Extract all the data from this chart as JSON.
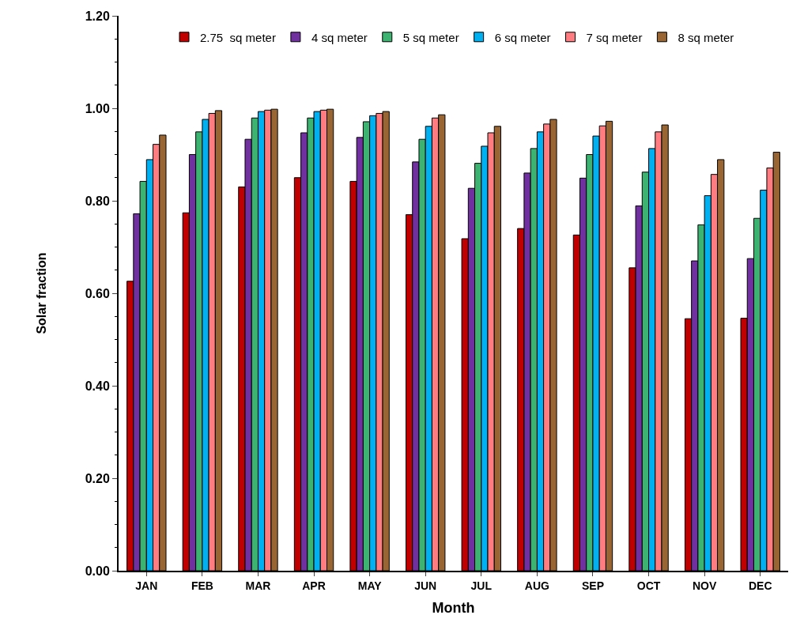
{
  "chart_data": {
    "type": "bar",
    "xlabel": "Month",
    "ylabel": "Solar fraction",
    "categories": [
      "JAN",
      "FEB",
      "MAR",
      "APR",
      "MAY",
      "JUN",
      "JUL",
      "AUG",
      "SEP",
      "OCT",
      "NOV",
      "DEC"
    ],
    "series": [
      {
        "name": "2.75  sq meter",
        "color": "#c00000",
        "values": [
          0.626,
          0.774,
          0.83,
          0.85,
          0.842,
          0.77,
          0.718,
          0.74,
          0.726,
          0.655,
          0.545,
          0.546
        ]
      },
      {
        "name": "4 sq meter",
        "color": "#7030a0",
        "values": [
          0.772,
          0.9,
          0.933,
          0.947,
          0.937,
          0.884,
          0.827,
          0.86,
          0.849,
          0.789,
          0.67,
          0.675
        ]
      },
      {
        "name": "5 sq meter",
        "color": "#3cb371",
        "values": [
          0.842,
          0.949,
          0.979,
          0.979,
          0.971,
          0.933,
          0.881,
          0.913,
          0.9,
          0.862,
          0.748,
          0.762
        ]
      },
      {
        "name": "6 sq meter",
        "color": "#00b0f0",
        "values": [
          0.889,
          0.976,
          0.993,
          0.993,
          0.984,
          0.961,
          0.918,
          0.949,
          0.94,
          0.913,
          0.811,
          0.823
        ]
      },
      {
        "name": "7 sq meter",
        "color": "#ff7c80",
        "values": [
          0.922,
          0.989,
          0.996,
          0.996,
          0.989,
          0.979,
          0.947,
          0.966,
          0.962,
          0.949,
          0.857,
          0.871
        ]
      },
      {
        "name": "8 sq meter",
        "color": "#996633",
        "values": [
          0.942,
          0.995,
          0.998,
          0.998,
          0.993,
          0.986,
          0.961,
          0.976,
          0.972,
          0.964,
          0.889,
          0.905
        ]
      }
    ],
    "ylim": [
      0,
      1.2
    ],
    "yticks": [
      {
        "value": 0,
        "label": "0.00"
      },
      {
        "value": 0.2,
        "label": "0.20"
      },
      {
        "value": 0.4,
        "label": "0.40"
      },
      {
        "value": 0.6,
        "label": "0.60"
      },
      {
        "value": 0.8,
        "label": "0.80"
      },
      {
        "value": 1.0,
        "label": "1.00"
      },
      {
        "value": 1.2,
        "label": "1.20"
      }
    ],
    "legend": "top"
  }
}
